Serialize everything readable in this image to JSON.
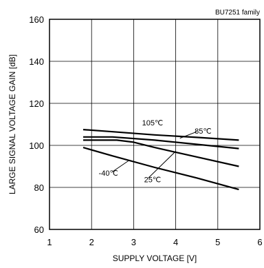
{
  "chart_data": {
    "type": "line",
    "family_label": "BU7251  family",
    "xlabel": "SUPPLY VOLTAGE [V]",
    "ylabel": "LARGE SIGNAL VOLTAGE GAIN [dB]",
    "xlim": [
      1,
      6
    ],
    "ylim": [
      60,
      160
    ],
    "xticks": [
      "1",
      "2",
      "3",
      "4",
      "5",
      "6"
    ],
    "yticks": [
      "60",
      "80",
      "100",
      "120",
      "140",
      "160"
    ],
    "grid": true,
    "series": [
      {
        "name": "105℃",
        "x": [
          1.8,
          2.5,
          3.5,
          4.5,
          5.5
        ],
        "y": [
          107.5,
          106.5,
          105.0,
          103.8,
          102.5
        ]
      },
      {
        "name": "85℃",
        "x": [
          1.8,
          2.5,
          3.5,
          4.5,
          5.5
        ],
        "y": [
          104.0,
          104.0,
          102.5,
          100.5,
          98.5
        ]
      },
      {
        "name": "25℃",
        "x": [
          1.8,
          2.6,
          3.0,
          3.5,
          4.5,
          5.5
        ],
        "y": [
          102.5,
          102.5,
          101.5,
          99.0,
          94.5,
          90.0
        ]
      },
      {
        "name": "-40℃",
        "x": [
          1.8,
          2.5,
          3.5,
          4.5,
          5.5
        ],
        "y": [
          99.0,
          95.0,
          89.5,
          84.5,
          79.0
        ]
      }
    ],
    "annotations": [
      {
        "text": "105℃",
        "x": 3.45,
        "y": 109.5
      },
      {
        "text": "85℃",
        "x": 4.65,
        "y": 105.5
      },
      {
        "text": "25℃",
        "x": 3.45,
        "y": 82.5
      },
      {
        "text": "-40℃",
        "x": 2.4,
        "y": 85.5
      }
    ]
  }
}
